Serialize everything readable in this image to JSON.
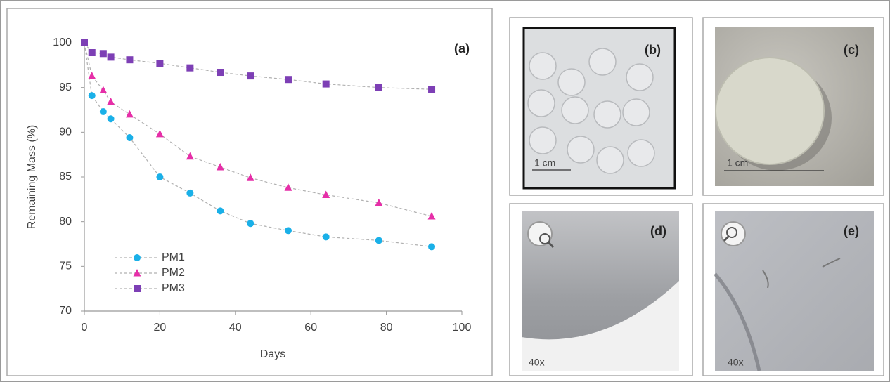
{
  "chart_data": {
    "type": "line",
    "annotation": "(a)",
    "x_label": "Days",
    "y_label": "Remaining Mass (%)",
    "x": [
      0,
      2,
      5,
      7,
      12,
      20,
      28,
      36,
      44,
      54,
      64,
      78,
      92
    ],
    "series": [
      {
        "name": "PM1",
        "color": "#1ab0e8",
        "marker": "circle",
        "values": [
          100,
          94.1,
          92.3,
          91.5,
          89.4,
          85.0,
          83.2,
          81.2,
          79.8,
          79.0,
          78.3,
          77.9,
          77.2
        ]
      },
      {
        "name": "PM2",
        "color": "#e62fa8",
        "marker": "triangle",
        "values": [
          100,
          96.3,
          94.7,
          93.4,
          92.0,
          89.8,
          87.3,
          86.1,
          84.9,
          83.8,
          83.0,
          82.1,
          80.6
        ]
      },
      {
        "name": "PM3",
        "color": "#7d3fb5",
        "marker": "square",
        "values": [
          100,
          98.9,
          98.8,
          98.4,
          98.1,
          97.7,
          97.2,
          96.7,
          96.3,
          95.9,
          95.4,
          95.0,
          94.8
        ]
      }
    ],
    "line_color": "#b0b0b0",
    "linestyle": "dashed",
    "xlim": [
      0,
      100
    ],
    "xticks": [
      0,
      20,
      40,
      60,
      80,
      100
    ],
    "ylim": [
      70,
      100
    ],
    "yticks": [
      70,
      75,
      80,
      85,
      90,
      95,
      100
    ],
    "grid": false,
    "legend": "lower left"
  },
  "panels": [
    {
      "label": "(b)",
      "scale_label": "1 cm"
    },
    {
      "label": "(c)",
      "scale_label": "1 cm"
    },
    {
      "label": "(d)",
      "magnification": "40x"
    },
    {
      "label": "(e)",
      "magnification": "40x"
    }
  ]
}
